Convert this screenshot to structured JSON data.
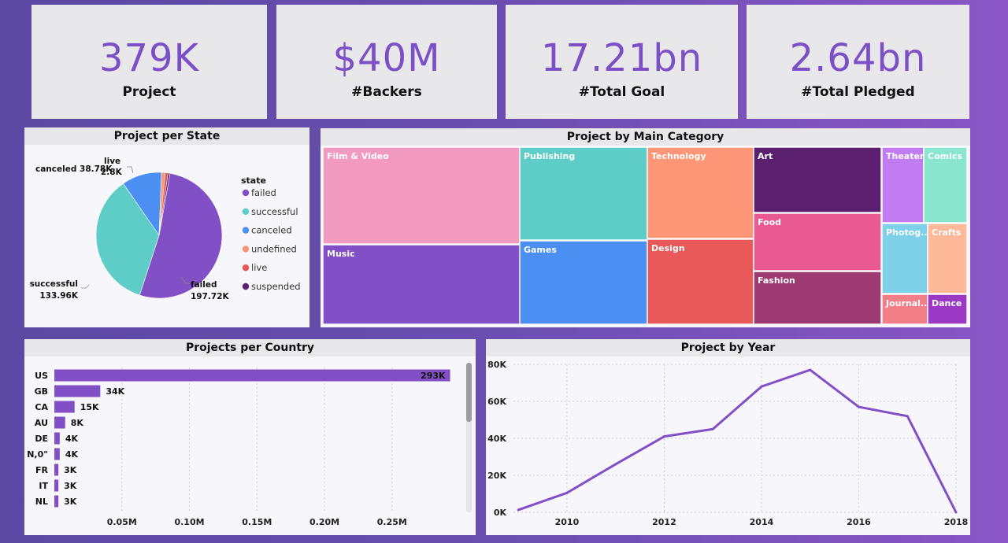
{
  "kpis": [
    {
      "value": "379K",
      "label": "Project"
    },
    {
      "value": "$40M",
      "label": "#Backers"
    },
    {
      "value": "17.21bn",
      "label": "#Total Goal"
    },
    {
      "value": "2.64bn",
      "label": "#Total Pledged"
    }
  ],
  "colors": {
    "accent": "#7b4fc6"
  },
  "chart_data": [
    {
      "type": "pie",
      "title": "Project per State",
      "legend_title": "state",
      "legend_position": "right",
      "labels": [
        "failed",
        "successful",
        "canceled",
        "undefined",
        "live",
        "suspended"
      ],
      "values": [
        197.72,
        133.96,
        38.78,
        3.6,
        2.8,
        1.8
      ],
      "data_labels": [
        "failed 197.72K",
        "successful 133.96K",
        "canceled 38.78K",
        "",
        "live 2.8K",
        ""
      ],
      "colors": [
        "#8150c6",
        "#5ecdc8",
        "#4b8ff2",
        "#f5967a",
        "#e85757",
        "#5a1f6e"
      ]
    },
    {
      "type": "treemap",
      "title": "Project by Main Category",
      "categories": [
        "Film & Video",
        "Music",
        "Publishing",
        "Games",
        "Technology",
        "Design",
        "Art",
        "Food",
        "Fashion",
        "Theater",
        "Comics",
        "Photog...",
        "Crafts",
        "Journal...",
        "Dance"
      ],
      "colors": [
        "#f29ac0",
        "#8150c6",
        "#5ecdc8",
        "#4b8ff2",
        "#fd9677",
        "#e95959",
        "#5a1f6e",
        "#ea5a92",
        "#9e3a72",
        "#c07cf0",
        "#8ae6cf",
        "#7fd1ea",
        "#fdb99a",
        "#f27e88",
        "#9b38c4"
      ]
    },
    {
      "type": "bar",
      "orientation": "horizontal",
      "title": "Projects per Country",
      "categories": [
        "US",
        "GB",
        "CA",
        "AU",
        "DE",
        "N,0\"",
        "FR",
        "IT",
        "NL"
      ],
      "values": [
        293,
        34,
        15,
        8,
        4,
        4,
        3,
        3,
        3
      ],
      "value_labels": [
        "293K",
        "34K",
        "15K",
        "8K",
        "4K",
        "4K",
        "3K",
        "3K",
        "3K"
      ],
      "xticks": [
        "0.05M",
        "0.10M",
        "0.15M",
        "0.20M",
        "0.25M"
      ],
      "xtick_values": [
        50,
        100,
        150,
        200,
        250
      ],
      "xlim": [
        0,
        295
      ],
      "color": "#8150c6"
    },
    {
      "type": "line",
      "title": "Project by Year",
      "x": [
        2009,
        2010,
        2011,
        2012,
        2013,
        2014,
        2015,
        2016,
        2017,
        2018
      ],
      "y": [
        1300,
        10500,
        26000,
        41000,
        45000,
        68000,
        77000,
        57000,
        52000,
        0
      ],
      "xticks": [
        "2010",
        "2012",
        "2014",
        "2016",
        "2018"
      ],
      "yticks": [
        "0K",
        "20K",
        "40K",
        "60K",
        "80K"
      ],
      "xlim": [
        2008.9,
        2018
      ],
      "ylim": [
        0,
        80000
      ],
      "color": "#8150c6"
    }
  ]
}
